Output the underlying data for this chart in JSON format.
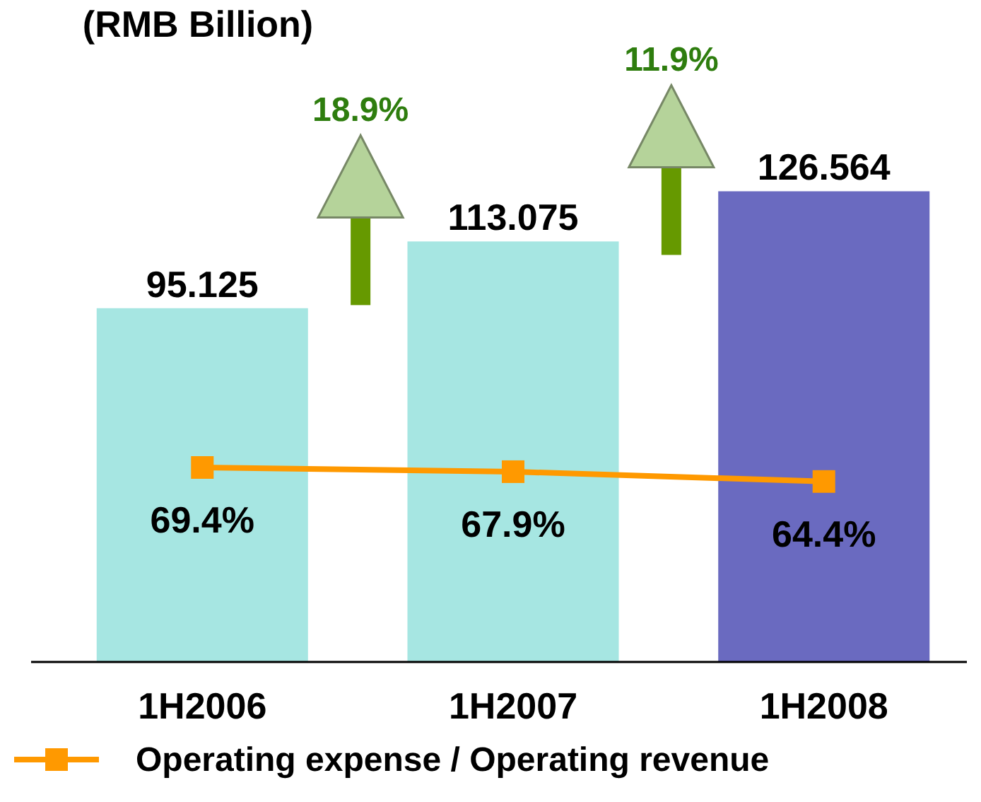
{
  "chart_data": {
    "type": "bar",
    "title": "(RMB Billion)",
    "categories": [
      "1H2006",
      "1H2007",
      "1H2008"
    ],
    "legend": "bottom",
    "marker": "square",
    "line_style": "solid",
    "series": [
      {
        "colors": [
          "#a6e6e2",
          "#a6e6e2",
          "#6a6ac0"
        ],
        "values": [
          95.125,
          113.075,
          126.564
        ],
        "value_labels": [
          "95.125",
          "113.075",
          "126.564"
        ]
      },
      {
        "type": "line",
        "axis": "y2",
        "name": "Operating expense / Operating revenue",
        "color": "#ff9900",
        "values": [
          69.4,
          67.9,
          64.4
        ],
        "value_labels": [
          "69.4%",
          "67.9%",
          "64.4%"
        ]
      }
    ],
    "annotations": [
      "18.9%",
      "11.9%"
    ]
  }
}
